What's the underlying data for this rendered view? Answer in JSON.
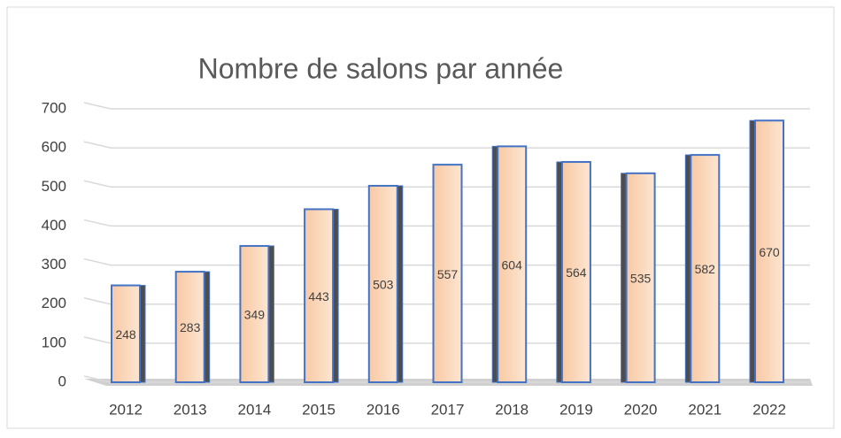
{
  "chart_data": {
    "type": "bar",
    "title": "Nombre de salons par année",
    "categories": [
      "2012",
      "2013",
      "2014",
      "2015",
      "2016",
      "2017",
      "2018",
      "2019",
      "2020",
      "2021",
      "2022"
    ],
    "values": [
      248,
      283,
      349,
      443,
      503,
      557,
      604,
      564,
      535,
      582,
      670
    ],
    "color": "#fbd3b3",
    "ylim": [
      0,
      700
    ],
    "yticks": [
      0,
      100,
      200,
      300,
      400,
      500,
      600,
      700
    ],
    "grid": true
  }
}
